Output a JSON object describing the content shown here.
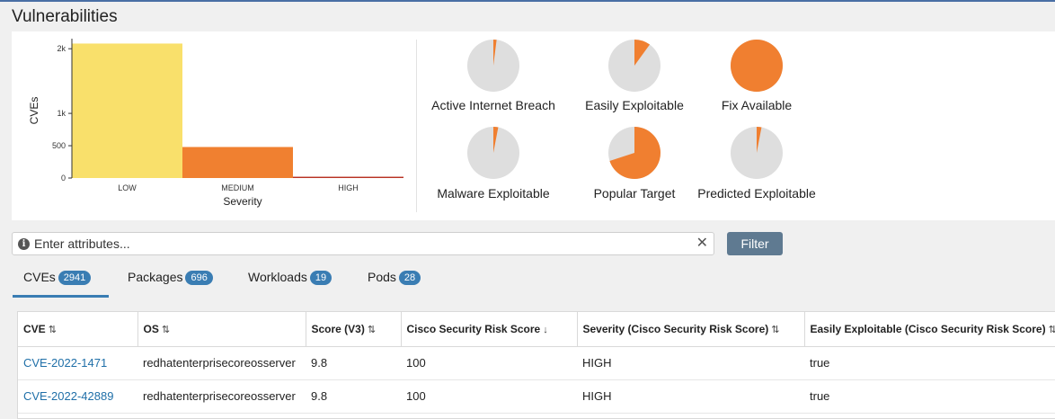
{
  "page": {
    "title": "Vulnerabilities"
  },
  "colors": {
    "low": "#f9e06b",
    "medium": "#f08030",
    "high": "#b83223",
    "donut_bg": "#dedede",
    "donut_fill": "#f07f30",
    "accent": "#3a7db3"
  },
  "chart_data": {
    "type": "bar",
    "categories": [
      "LOW",
      "MEDIUM",
      "HIGH"
    ],
    "values": [
      2080,
      480,
      20
    ],
    "yticks": [
      0,
      500,
      1000,
      2000
    ],
    "ytick_labels": [
      "0",
      "500",
      "1k",
      "2k"
    ],
    "ylim": [
      0,
      2100
    ],
    "xlabel": "Severity",
    "ylabel": "CVEs"
  },
  "donuts": [
    {
      "label": "Active Internet Breach",
      "fraction": 0.02
    },
    {
      "label": "Easily Exploitable",
      "fraction": 0.1
    },
    {
      "label": "Fix Available",
      "fraction": 1.0
    },
    {
      "label": "Malware Exploitable",
      "fraction": 0.03
    },
    {
      "label": "Popular Target",
      "fraction": 0.7
    },
    {
      "label": "Predicted Exploitable",
      "fraction": 0.03
    }
  ],
  "search": {
    "placeholder": "Enter attributes...",
    "clear_icon": "close-icon",
    "info_icon": "info-icon"
  },
  "filter": {
    "label": "Filter"
  },
  "tabs": [
    {
      "label": "CVEs",
      "count": "2941"
    },
    {
      "label": "Packages",
      "count": "696"
    },
    {
      "label": "Workloads",
      "count": "19"
    },
    {
      "label": "Pods",
      "count": "28"
    }
  ],
  "table": {
    "columns": [
      {
        "label": "CVE",
        "sort": "⇅"
      },
      {
        "label": "OS",
        "sort": "⇅"
      },
      {
        "label": "Score (V3)",
        "sort": "⇅"
      },
      {
        "label": "Cisco Security Risk Score",
        "sort": "↓"
      },
      {
        "label": "Severity (Cisco Security Risk Score)",
        "sort": "⇅"
      },
      {
        "label": "Easily Exploitable (Cisco Security Risk Score)",
        "sort": "⇅"
      }
    ],
    "rows": [
      [
        "CVE-2022-1471",
        "redhatenterprisecoreosserver",
        "9.8",
        "100",
        "HIGH",
        "true"
      ],
      [
        "CVE-2022-42889",
        "redhatenterprisecoreosserver",
        "9.8",
        "100",
        "HIGH",
        "true"
      ]
    ]
  }
}
